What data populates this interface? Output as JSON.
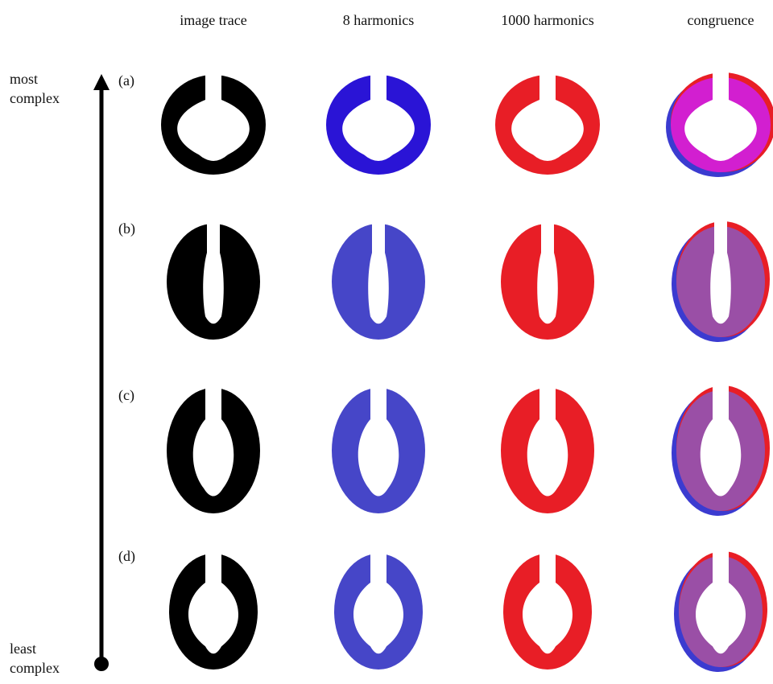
{
  "header": {
    "columns": [
      "image trace",
      "8 harmonics",
      "1000 harmonics",
      "congruence"
    ]
  },
  "axis": {
    "top": [
      "most",
      "complex"
    ],
    "bottom": [
      "least",
      "complex"
    ]
  },
  "rows": [
    {
      "label": "(a)"
    },
    {
      "label": "(b)"
    },
    {
      "label": "(c)"
    },
    {
      "label": "(d)"
    }
  ]
}
